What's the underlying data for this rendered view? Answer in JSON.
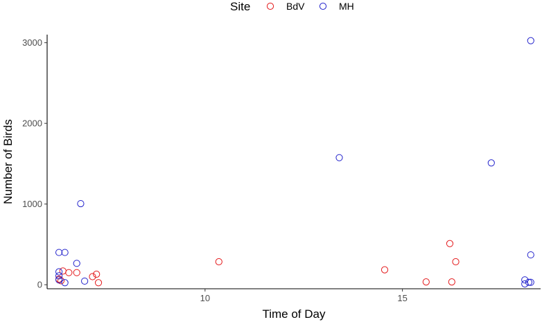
{
  "chart_data": {
    "type": "scatter",
    "title": "",
    "xlabel": "Time of Day",
    "ylabel": "Number of Birds",
    "xlim": [
      6,
      18.5
    ],
    "ylim": [
      -50,
      3100
    ],
    "x_ticks": [
      10,
      15
    ],
    "y_ticks": [
      0,
      1000,
      2000,
      3000
    ],
    "grid": false,
    "legend": {
      "title": "Site",
      "position": "top"
    },
    "series": [
      {
        "name": "BdV",
        "color": "#e41a1c",
        "points": [
          {
            "x": 6.3,
            "y": 70
          },
          {
            "x": 6.35,
            "y": 50
          },
          {
            "x": 6.4,
            "y": 170
          },
          {
            "x": 6.55,
            "y": 150
          },
          {
            "x": 6.75,
            "y": 150
          },
          {
            "x": 7.15,
            "y": 100
          },
          {
            "x": 7.25,
            "y": 130
          },
          {
            "x": 7.3,
            "y": 25
          },
          {
            "x": 10.35,
            "y": 285
          },
          {
            "x": 14.55,
            "y": 185
          },
          {
            "x": 15.6,
            "y": 35
          },
          {
            "x": 16.2,
            "y": 510
          },
          {
            "x": 16.25,
            "y": 35
          },
          {
            "x": 16.35,
            "y": 285
          }
        ]
      },
      {
        "name": "MH",
        "color": "#2323cc",
        "points": [
          {
            "x": 6.3,
            "y": 400
          },
          {
            "x": 6.3,
            "y": 160
          },
          {
            "x": 6.3,
            "y": 110
          },
          {
            "x": 6.3,
            "y": 60
          },
          {
            "x": 6.45,
            "y": 400
          },
          {
            "x": 6.45,
            "y": 25
          },
          {
            "x": 6.75,
            "y": 265
          },
          {
            "x": 6.85,
            "y": 1005
          },
          {
            "x": 6.95,
            "y": 45
          },
          {
            "x": 13.4,
            "y": 1575
          },
          {
            "x": 17.25,
            "y": 1510
          },
          {
            "x": 18.1,
            "y": 60
          },
          {
            "x": 18.1,
            "y": 10
          },
          {
            "x": 18.2,
            "y": 30
          },
          {
            "x": 18.25,
            "y": 30
          },
          {
            "x": 18.25,
            "y": 370
          },
          {
            "x": 18.25,
            "y": 3025
          }
        ]
      }
    ]
  }
}
